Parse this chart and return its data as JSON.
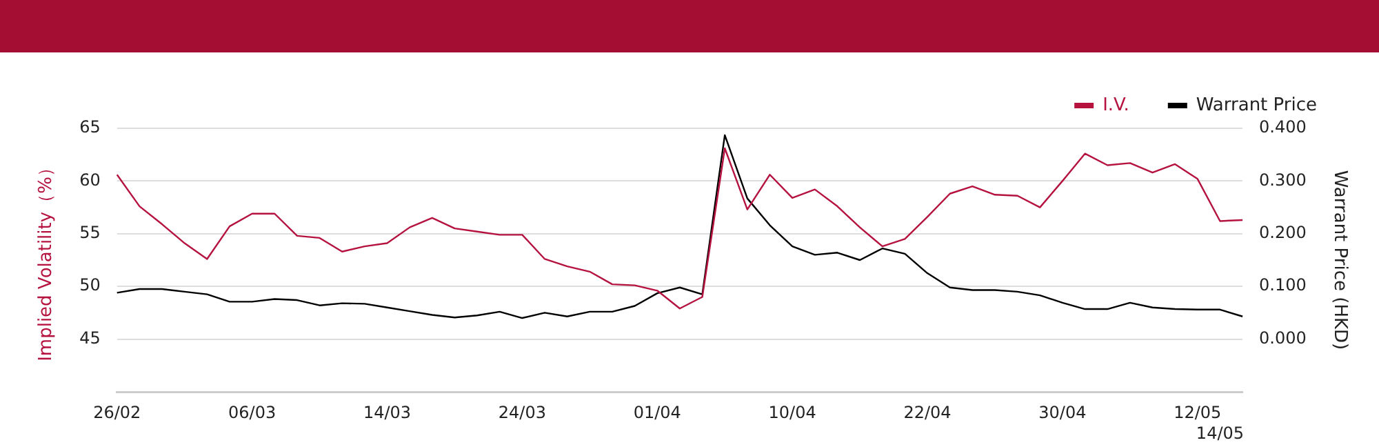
{
  "chart_data": {
    "type": "line",
    "categories": [
      "26/02",
      null,
      null,
      null,
      null,
      null,
      "06/03",
      null,
      null,
      null,
      null,
      null,
      "14/03",
      null,
      null,
      null,
      null,
      null,
      "24/03",
      null,
      null,
      null,
      null,
      null,
      "01/04",
      null,
      null,
      null,
      null,
      null,
      "10/04",
      null,
      null,
      null,
      null,
      null,
      "22/04",
      null,
      null,
      null,
      null,
      null,
      "30/04",
      null,
      null,
      null,
      null,
      null,
      "12/05",
      "14/05",
      null
    ],
    "ylabel": "Implied Volatility（%）",
    "y2label": "Warrant Price (HKD)",
    "ylim": [
      40,
      65
    ],
    "yticks": [
      45,
      50,
      55,
      60,
      65
    ],
    "y2lim": [
      -0.1,
      0.4
    ],
    "y2ticks": [
      {
        "value": 0,
        "label": "0.000"
      },
      {
        "value": 0.1,
        "label": "0.100"
      },
      {
        "value": 0.2,
        "label": "0.200"
      },
      {
        "value": 0.3,
        "label": "0.300"
      },
      {
        "value": 0.4,
        "label": "0.400"
      }
    ],
    "grid": "y",
    "legend": "top right",
    "marker": "none",
    "series": [
      {
        "name": "I.V.",
        "color": "#b5123f",
        "values": [
          60.6,
          57.6,
          55.9,
          54.1,
          52.6,
          55.7,
          56.9,
          56.9,
          54.8,
          54.6,
          53.3,
          53.8,
          54.1,
          55.6,
          56.5,
          55.5,
          55.2,
          54.9,
          54.9,
          52.6,
          51.9,
          51.4,
          50.2,
          50.1,
          49.6,
          47.9,
          49.0,
          63.1,
          57.3,
          60.6,
          58.4,
          59.2,
          57.6,
          55.6,
          53.8,
          54.5,
          56.6,
          58.8,
          59.5,
          58.7,
          58.6,
          57.5,
          60.0,
          62.6,
          61.5,
          61.7,
          60.8,
          61.6,
          60.2,
          56.2,
          56.3
        ]
      },
      {
        "name": "Warrant Price",
        "color": "#000000",
        "axis": "y2",
        "values": [
          0.088,
          0.095,
          0.095,
          0.09,
          0.085,
          0.071,
          0.071,
          0.076,
          0.074,
          0.064,
          0.068,
          0.067,
          0.06,
          0.053,
          0.046,
          0.041,
          0.045,
          0.052,
          0.04,
          0.05,
          0.043,
          0.052,
          0.052,
          0.063,
          0.087,
          0.098,
          0.085,
          0.387,
          0.267,
          0.216,
          0.176,
          0.16,
          0.164,
          0.15,
          0.172,
          0.162,
          0.125,
          0.098,
          0.093,
          0.093,
          0.09,
          0.083,
          0.069,
          0.057,
          0.057,
          0.069,
          0.06,
          0.057,
          0.056,
          0.056,
          0.043
        ]
      }
    ]
  }
}
